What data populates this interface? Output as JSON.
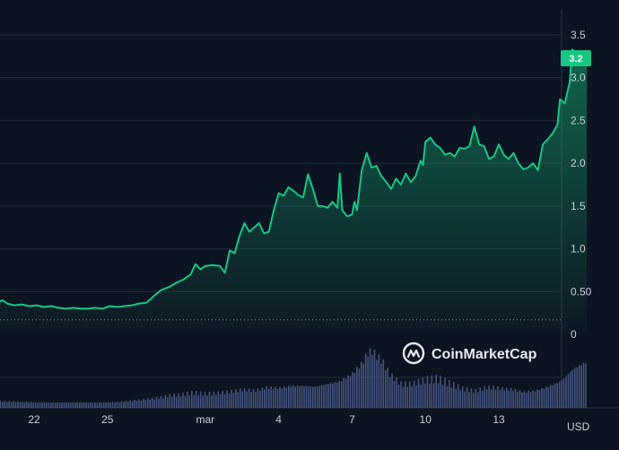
{
  "chart_data": {
    "type": "area",
    "currency_label": "USD",
    "current_price_label": "3.2",
    "watermark": "CoinMarketCap",
    "y_ticks": [
      {
        "value": 3.5,
        "label": "3.5"
      },
      {
        "value": 3.0,
        "label": "3.0"
      },
      {
        "value": 2.5,
        "label": "2.5"
      },
      {
        "value": 2.0,
        "label": "2.0"
      },
      {
        "value": 1.5,
        "label": "1.5"
      },
      {
        "value": 1.0,
        "label": "1.0"
      },
      {
        "value": 0.5,
        "label": "0.50"
      },
      {
        "value": 0,
        "label": "0"
      }
    ],
    "x_ticks": [
      {
        "day": 22,
        "label": "22"
      },
      {
        "day": 25,
        "label": "25"
      },
      {
        "day": 29,
        "label": "mar"
      },
      {
        "day": 32,
        "label": "4"
      },
      {
        "day": 35,
        "label": "7"
      },
      {
        "day": 38,
        "label": "10"
      },
      {
        "day": 41,
        "label": "13"
      }
    ],
    "ylim": [
      0,
      3.8
    ],
    "reference_value": 0.17,
    "colors": {
      "line": "#16c784",
      "area_top": "#16c784",
      "background": "#0d1421",
      "grid": "#222a38",
      "volume": "#4a5a8a",
      "badge": "#16c784"
    },
    "price_points": [
      [
        20.5,
        0.36
      ],
      [
        20.7,
        0.4
      ],
      [
        20.9,
        0.36
      ],
      [
        21.2,
        0.34
      ],
      [
        21.5,
        0.35
      ],
      [
        21.8,
        0.33
      ],
      [
        22.1,
        0.34
      ],
      [
        22.4,
        0.32
      ],
      [
        22.7,
        0.33
      ],
      [
        23.0,
        0.31
      ],
      [
        23.3,
        0.3
      ],
      [
        23.6,
        0.31
      ],
      [
        23.9,
        0.3
      ],
      [
        24.2,
        0.3
      ],
      [
        24.5,
        0.31
      ],
      [
        24.8,
        0.3
      ],
      [
        25.1,
        0.33
      ],
      [
        25.4,
        0.32
      ],
      [
        25.7,
        0.33
      ],
      [
        26.0,
        0.34
      ],
      [
        26.3,
        0.36
      ],
      [
        26.6,
        0.37
      ],
      [
        26.9,
        0.45
      ],
      [
        27.2,
        0.52
      ],
      [
        27.5,
        0.55
      ],
      [
        27.8,
        0.6
      ],
      [
        28.1,
        0.64
      ],
      [
        28.4,
        0.7
      ],
      [
        28.6,
        0.82
      ],
      [
        28.8,
        0.76
      ],
      [
        29.0,
        0.8
      ],
      [
        29.3,
        0.81
      ],
      [
        29.6,
        0.8
      ],
      [
        29.8,
        0.72
      ],
      [
        30.0,
        0.98
      ],
      [
        30.2,
        0.95
      ],
      [
        30.4,
        1.15
      ],
      [
        30.6,
        1.3
      ],
      [
        30.8,
        1.2
      ],
      [
        31.0,
        1.25
      ],
      [
        31.2,
        1.3
      ],
      [
        31.4,
        1.18
      ],
      [
        31.6,
        1.2
      ],
      [
        31.8,
        1.45
      ],
      [
        32.0,
        1.65
      ],
      [
        32.2,
        1.62
      ],
      [
        32.4,
        1.72
      ],
      [
        32.6,
        1.68
      ],
      [
        32.8,
        1.63
      ],
      [
        33.0,
        1.6
      ],
      [
        33.2,
        1.87
      ],
      [
        33.4,
        1.7
      ],
      [
        33.6,
        1.5
      ],
      [
        33.8,
        1.5
      ],
      [
        34.0,
        1.48
      ],
      [
        34.2,
        1.55
      ],
      [
        34.4,
        1.48
      ],
      [
        34.5,
        1.88
      ],
      [
        34.6,
        1.45
      ],
      [
        34.8,
        1.38
      ],
      [
        35.0,
        1.4
      ],
      [
        35.1,
        1.55
      ],
      [
        35.2,
        1.45
      ],
      [
        35.4,
        1.92
      ],
      [
        35.6,
        2.12
      ],
      [
        35.8,
        1.95
      ],
      [
        36.0,
        1.97
      ],
      [
        36.2,
        1.85
      ],
      [
        36.4,
        1.78
      ],
      [
        36.6,
        1.7
      ],
      [
        36.8,
        1.82
      ],
      [
        37.0,
        1.75
      ],
      [
        37.2,
        1.88
      ],
      [
        37.4,
        1.78
      ],
      [
        37.6,
        1.85
      ],
      [
        37.8,
        2.03
      ],
      [
        37.9,
        1.98
      ],
      [
        38.0,
        2.25
      ],
      [
        38.2,
        2.3
      ],
      [
        38.4,
        2.22
      ],
      [
        38.6,
        2.18
      ],
      [
        38.8,
        2.1
      ],
      [
        39.0,
        2.12
      ],
      [
        39.2,
        2.08
      ],
      [
        39.4,
        2.18
      ],
      [
        39.6,
        2.17
      ],
      [
        39.8,
        2.2
      ],
      [
        40.0,
        2.43
      ],
      [
        40.2,
        2.22
      ],
      [
        40.4,
        2.2
      ],
      [
        40.6,
        2.05
      ],
      [
        40.8,
        2.08
      ],
      [
        41.0,
        2.22
      ],
      [
        41.2,
        2.1
      ],
      [
        41.4,
        2.05
      ],
      [
        41.6,
        2.12
      ],
      [
        41.8,
        2.0
      ],
      [
        42.0,
        1.93
      ],
      [
        42.2,
        1.95
      ],
      [
        42.4,
        2.0
      ],
      [
        42.6,
        1.92
      ],
      [
        42.8,
        2.22
      ],
      [
        43.0,
        2.28
      ],
      [
        43.2,
        2.35
      ],
      [
        43.4,
        2.45
      ],
      [
        43.5,
        2.75
      ],
      [
        43.7,
        2.7
      ],
      [
        43.9,
        2.95
      ],
      [
        44.0,
        3.33
      ],
      [
        44.2,
        3.28
      ],
      [
        44.3,
        3.22
      ],
      [
        44.5,
        3.29
      ],
      [
        44.6,
        3.2
      ]
    ],
    "volume_points": [
      [
        20.5,
        0.1
      ],
      [
        21.5,
        0.09
      ],
      [
        22.5,
        0.08
      ],
      [
        23.5,
        0.08
      ],
      [
        24.5,
        0.08
      ],
      [
        25.5,
        0.09
      ],
      [
        26.0,
        0.11
      ],
      [
        26.5,
        0.13
      ],
      [
        27.0,
        0.15
      ],
      [
        27.5,
        0.19
      ],
      [
        28.0,
        0.21
      ],
      [
        28.5,
        0.24
      ],
      [
        29.0,
        0.22
      ],
      [
        29.5,
        0.23
      ],
      [
        30.0,
        0.25
      ],
      [
        30.5,
        0.28
      ],
      [
        31.0,
        0.26
      ],
      [
        31.5,
        0.31
      ],
      [
        32.0,
        0.3
      ],
      [
        32.5,
        0.33
      ],
      [
        33.0,
        0.33
      ],
      [
        33.5,
        0.32
      ],
      [
        34.0,
        0.36
      ],
      [
        34.5,
        0.4
      ],
      [
        35.0,
        0.52
      ],
      [
        35.4,
        0.68
      ],
      [
        35.6,
        0.83
      ],
      [
        35.8,
        0.86
      ],
      [
        36.0,
        0.78
      ],
      [
        36.2,
        0.72
      ],
      [
        36.5,
        0.52
      ],
      [
        37.0,
        0.36
      ],
      [
        37.5,
        0.38
      ],
      [
        38.0,
        0.44
      ],
      [
        38.5,
        0.46
      ],
      [
        39.0,
        0.38
      ],
      [
        39.5,
        0.3
      ],
      [
        40.0,
        0.26
      ],
      [
        40.5,
        0.32
      ],
      [
        41.0,
        0.3
      ],
      [
        41.5,
        0.28
      ],
      [
        42.0,
        0.24
      ],
      [
        42.5,
        0.26
      ],
      [
        43.0,
        0.32
      ],
      [
        43.5,
        0.4
      ],
      [
        44.0,
        0.58
      ],
      [
        44.5,
        0.68
      ]
    ]
  }
}
